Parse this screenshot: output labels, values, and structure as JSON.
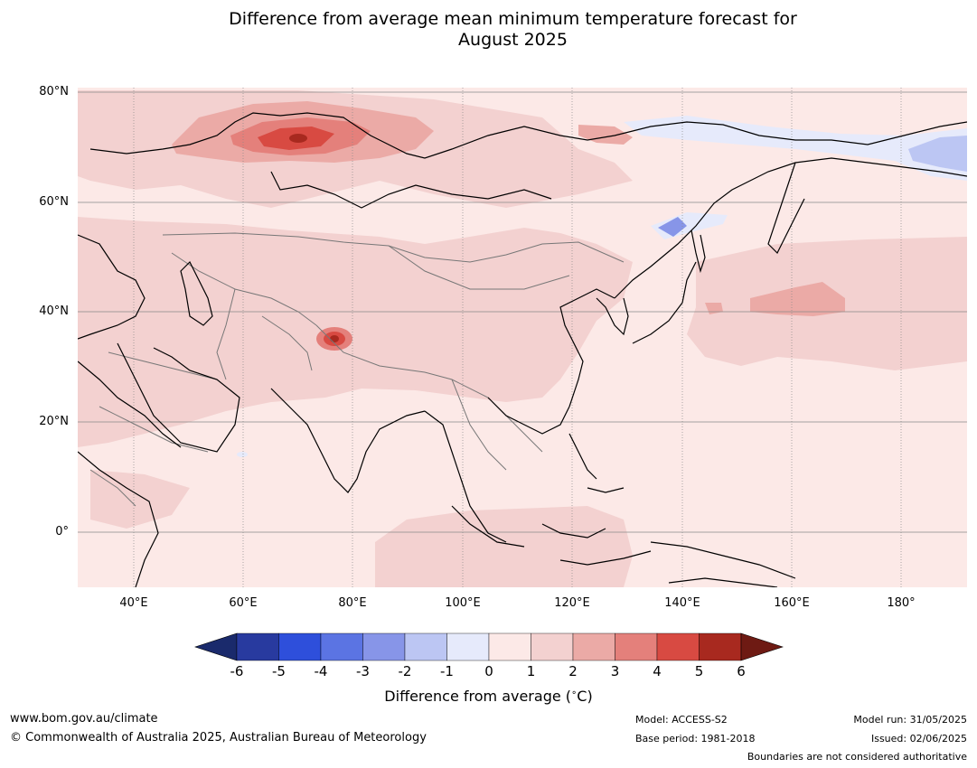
{
  "title": {
    "line1": "Difference from average mean minimum temperature forecast for",
    "line2": "August 2025"
  },
  "map": {
    "lat_labels": [
      "80°N",
      "60°N",
      "40°N",
      "20°N",
      "0°"
    ],
    "lon_labels": [
      "40°E",
      "60°E",
      "80°E",
      "100°E",
      "120°E",
      "140°E",
      "160°E",
      "180°"
    ],
    "region": "Asia",
    "projection": "equirectangular",
    "grid": true
  },
  "colorbar": {
    "ticks": [
      "-6",
      "-5",
      "-4",
      "-3",
      "-2",
      "-1",
      "0",
      "1",
      "2",
      "3",
      "4",
      "5",
      "6"
    ],
    "colors": [
      "#283a9f",
      "#2e4fdb",
      "#5b74e3",
      "#8795e8",
      "#bcc6f3",
      "#e6eafb",
      "#fce9e7",
      "#f3d1d0",
      "#ebaaa6",
      "#e4807b",
      "#d84a42",
      "#a8291f"
    ],
    "under_color": "#1a2a6c",
    "over_color": "#6e1a13",
    "label": "Difference from average ($^\\circ$C)",
    "label_text": "Difference from average (",
    "label_unit": "C)",
    "label_degree": "∘"
  },
  "footer": {
    "website": "www.bom.gov.au/climate",
    "copyright": "© Commonwealth of Australia 2025, Australian Bureau of Meteorology",
    "model": "Model: ACCESS-S2",
    "base_period": "Base period: 1981-2018",
    "model_run": "Model run: 31/05/2025",
    "issued": "Issued: 02/06/2025",
    "disclaimer": "Boundaries are not considered authoritative"
  }
}
